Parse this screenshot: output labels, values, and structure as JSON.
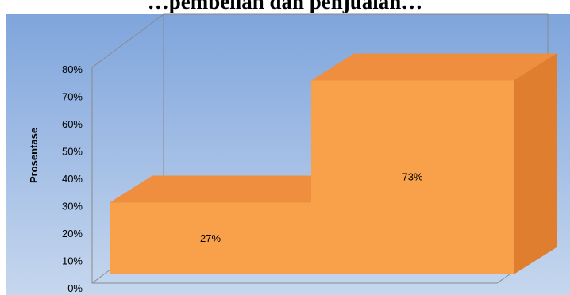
{
  "chart_data": {
    "type": "bar",
    "style": "3d-area-step",
    "title": "…pembelian dan penjualan…",
    "ylabel": "Prosentase",
    "xlabel": "",
    "ylim": [
      0,
      80
    ],
    "y_tick_labels": [
      "0%",
      "10%",
      "20%",
      "30%",
      "40%",
      "50%",
      "60%",
      "70%",
      "80%"
    ],
    "categories": [
      "",
      ""
    ],
    "values": [
      27,
      73
    ],
    "data_labels": [
      "27%",
      "73%"
    ],
    "grid": false,
    "legend": "none"
  },
  "colors": {
    "background_top": "#7fa5dc",
    "background_bottom": "#c6d7ee",
    "bar_front": "#f8a04a",
    "bar_top": "#ee8e3e",
    "bar_side": "#e07e30",
    "axis_line": "#8a8a8a",
    "text": "#000000"
  }
}
